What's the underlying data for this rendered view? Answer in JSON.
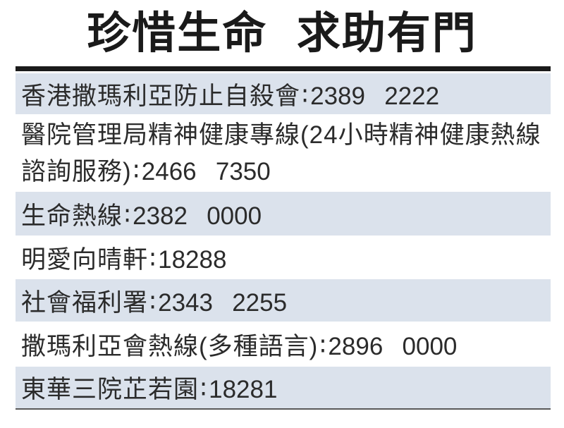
{
  "page": {
    "title": "珍惜生命 求助有門",
    "background": "#ffffff"
  },
  "table": {
    "separator": "∶",
    "colors": {
      "shaded_row_bg": "#dbe2ec",
      "top_bar": "#1a1a1a",
      "bottom_rule": "#595959",
      "text": "#2b2b2b",
      "title": "#1a1a1a"
    },
    "rows": [
      {
        "label": "香港撒瑪利亞防止自殺會",
        "phone": "2389 2222",
        "shaded": true
      },
      {
        "label": "醫院管理局精神健康專線(24小時精神健康熱線諮詢服務)",
        "phone": "2466 7350",
        "shaded": false
      },
      {
        "label": "生命熱線",
        "phone": "2382 0000",
        "shaded": true
      },
      {
        "label": "明愛向晴軒",
        "phone": "18288",
        "shaded": false
      },
      {
        "label": "社會福利署",
        "phone": "2343 2255",
        "shaded": true
      },
      {
        "label": "撒瑪利亞會熱線(多種語言)",
        "phone": "2896 0000",
        "shaded": false
      },
      {
        "label": "東華三院芷若園",
        "phone": "18281",
        "shaded": true
      }
    ]
  }
}
